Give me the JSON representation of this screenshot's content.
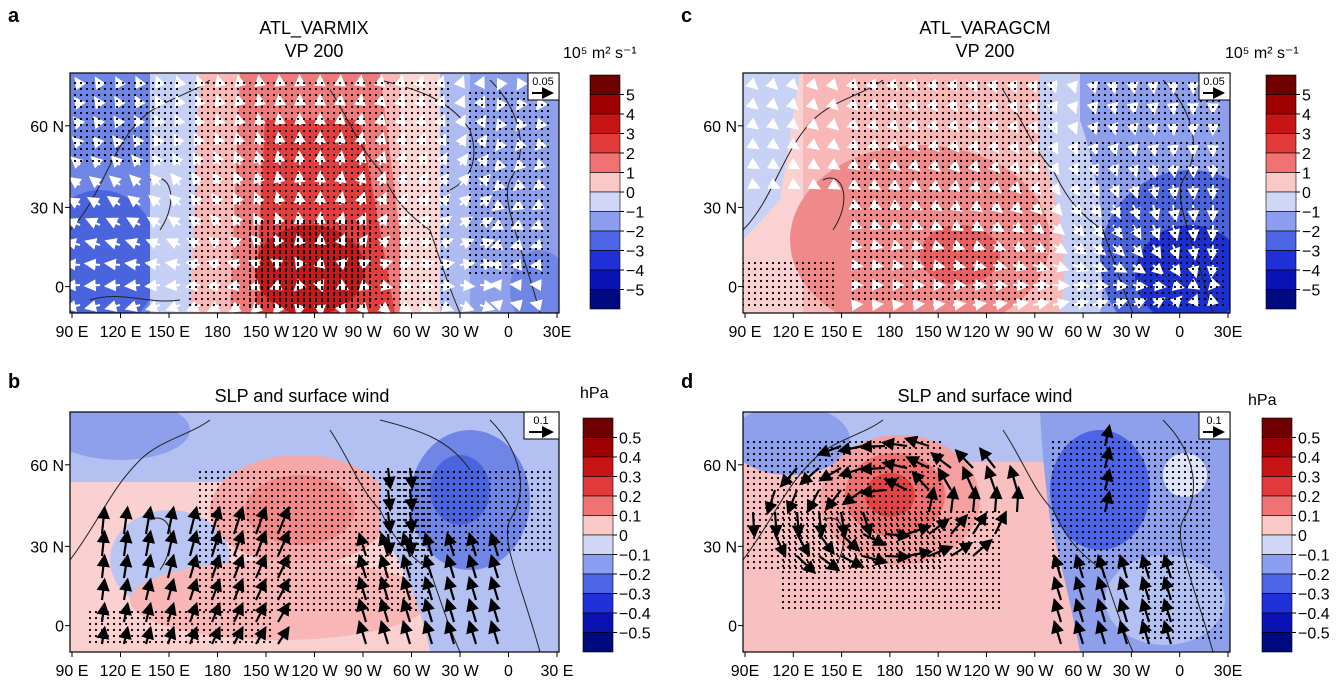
{
  "panels": [
    {
      "letter": "a",
      "title_lines": [
        "ATL_VARMIX",
        "VP 200"
      ],
      "unit": "10⁵ m² s⁻¹",
      "ref_vector": "0.05",
      "x_ticks": [
        "90 E",
        "120 E",
        "150 E",
        "180",
        "150 W",
        "120 W",
        "90 W",
        "60 W",
        "30 W",
        "0",
        "30E"
      ],
      "y_ticks": [
        "60 N",
        "30 N",
        "0"
      ],
      "colorbar_labels": [
        "5",
        "4",
        "3",
        "2",
        "1",
        "0",
        "−1",
        "−2",
        "−3",
        "−4",
        "−5"
      ],
      "arrow_color": "#ffffff"
    },
    {
      "letter": "b",
      "title_lines": [
        "SLP and surface wind"
      ],
      "unit": "hPa",
      "ref_vector": "0.1",
      "x_ticks": [
        "90 E",
        "120 E",
        "150 E",
        "180",
        "150 W",
        "120 W",
        "90 W",
        "60 W",
        "30 W",
        "0",
        "30 E"
      ],
      "y_ticks": [
        "60 N",
        "30 N",
        "0"
      ],
      "colorbar_labels": [
        "0.5",
        "0.4",
        "0.3",
        "0.2",
        "0.1",
        "0",
        "−0.1",
        "−0.2",
        "−0.3",
        "−0.4",
        "−0.5"
      ],
      "arrow_color": "#000000"
    },
    {
      "letter": "c",
      "title_lines": [
        "ATL_VARAGCM",
        "VP 200"
      ],
      "unit": "10⁵ m² s⁻¹",
      "ref_vector": "0.05",
      "x_ticks": [
        "90 E",
        "120 E",
        "150 E",
        "180",
        "150 W",
        "120 W",
        "90 W",
        "60 W",
        "30 W",
        "0",
        "30E"
      ],
      "y_ticks": [
        "60 N",
        "30 N",
        "0"
      ],
      "colorbar_labels": [
        "5",
        "4",
        "3",
        "2",
        "1",
        "0",
        "−1",
        "−2",
        "−3",
        "−4",
        "−5"
      ],
      "arrow_color": "#ffffff"
    },
    {
      "letter": "d",
      "title_lines": [
        "SLP and surface wind"
      ],
      "unit": "hPa",
      "ref_vector": "0.1",
      "x_ticks": [
        "90E",
        "120 E",
        "150 E",
        "180",
        "150 W",
        "120 W",
        "90 W",
        "60 W",
        "30 W",
        "0",
        "30E"
      ],
      "y_ticks": [
        "60 N",
        "30 N",
        "0"
      ],
      "colorbar_labels": [
        "0.5",
        "0.4",
        "0.3",
        "0.2",
        "0.1",
        "0",
        "−0.1",
        "−0.2",
        "−0.3",
        "−0.4",
        "−0.5"
      ],
      "arrow_color": "#000000"
    }
  ],
  "colors": {
    "palette": [
      "#6e0000",
      "#9c0000",
      "#c81414",
      "#e23a3a",
      "#f07272",
      "#fbc8c8",
      "#cfd6f6",
      "#8c9ef0",
      "#4c64e6",
      "#2030d8",
      "#0a12b4",
      "#000a80"
    ]
  }
}
